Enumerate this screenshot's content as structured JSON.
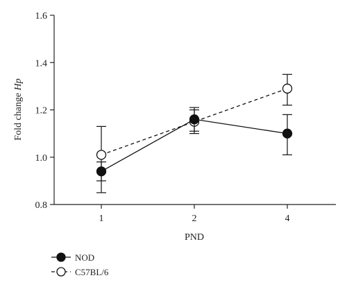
{
  "chart_data": {
    "type": "line",
    "categories": [
      "1",
      "2",
      "4"
    ],
    "xlabel": "PND",
    "ylabel_prefix": "Fold change ",
    "ylabel_italic": "Hp",
    "ylim": [
      0.8,
      1.6
    ],
    "yticks": [
      "0.8",
      "1.0",
      "1.2",
      "1.4",
      "1.6"
    ],
    "grid": false,
    "legend_position": "bottom-left",
    "series": [
      {
        "name": "NOD",
        "marker": "filled-circle",
        "line_style": "solid",
        "values": [
          0.94,
          1.16,
          1.1
        ],
        "err_low": [
          0.85,
          1.11,
          1.01
        ],
        "err_high": [
          0.98,
          1.21,
          1.18
        ]
      },
      {
        "name": "C57BL/6",
        "marker": "open-circle",
        "line_style": "dashed",
        "values": [
          1.01,
          1.15,
          1.29
        ],
        "err_low": [
          0.9,
          1.1,
          1.22
        ],
        "err_high": [
          1.13,
          1.2,
          1.35
        ]
      }
    ]
  }
}
